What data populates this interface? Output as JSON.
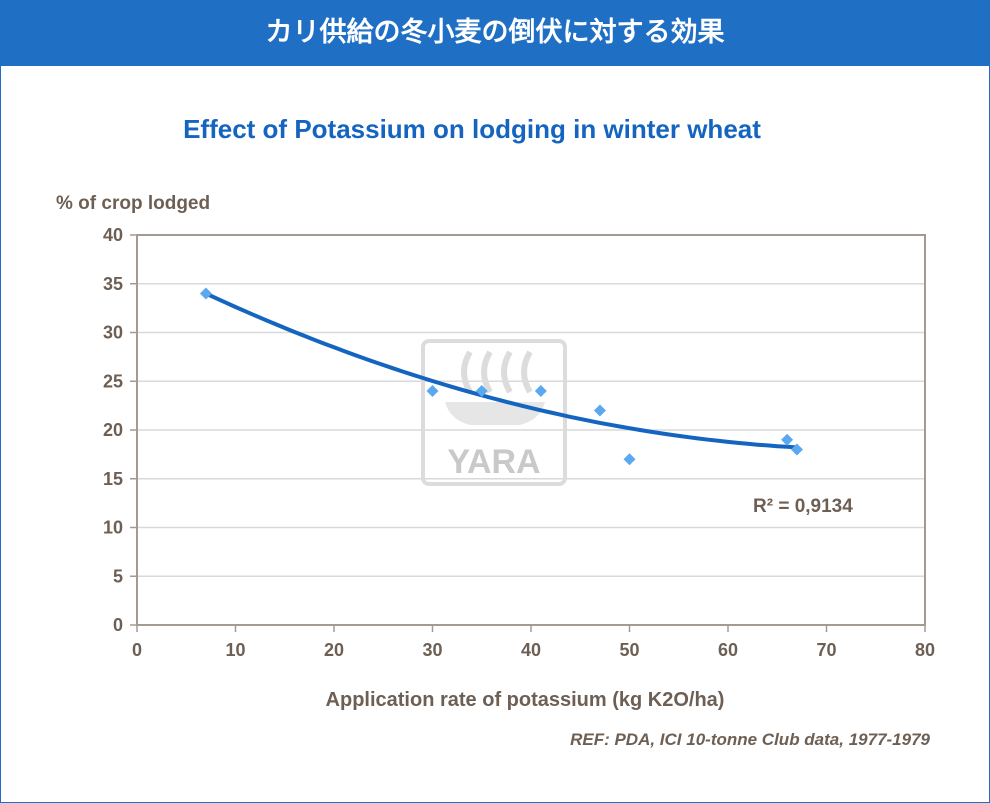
{
  "banner": {
    "title": "カリ供給の冬小麦の倒伏に対する効果"
  },
  "watermark": {
    "text": "YARA"
  },
  "reference": "REF: PDA, ICI 10-tonne Club data, 1977-1979",
  "colors": {
    "banner": "#1f6fc5",
    "title": "#1565c0",
    "points": "#5aa9f0",
    "trendline": "#1565c0",
    "axis_text": "#6e5f54",
    "grid": "#d9d9d9",
    "plot_border": "#a39a90"
  },
  "chart_data": {
    "type": "scatter",
    "title": "Effect of Potassium on lodging in winter wheat",
    "xlabel": "Application rate of potassium (kg K2O/ha)",
    "ylabel": "% of crop lodged",
    "xlim": [
      0,
      80
    ],
    "ylim": [
      0,
      40
    ],
    "xticks": [
      0,
      10,
      20,
      30,
      40,
      50,
      60,
      70,
      80
    ],
    "yticks": [
      0,
      5,
      10,
      15,
      20,
      25,
      30,
      35,
      40
    ],
    "grid": "horizontal",
    "points": [
      {
        "x": 7,
        "y": 34
      },
      {
        "x": 30,
        "y": 24
      },
      {
        "x": 35,
        "y": 24
      },
      {
        "x": 41,
        "y": 24
      },
      {
        "x": 47,
        "y": 22
      },
      {
        "x": 50,
        "y": 17
      },
      {
        "x": 66,
        "y": 19
      },
      {
        "x": 67,
        "y": 18
      }
    ],
    "trendline": {
      "type": "polynomial",
      "order": 2,
      "r2_label": "R² = 0,9134",
      "x_range": [
        7,
        67
      ]
    }
  }
}
